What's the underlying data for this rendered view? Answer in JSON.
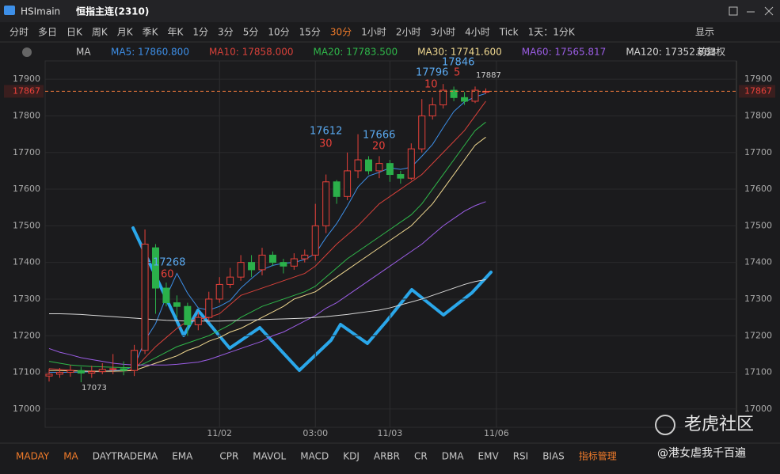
{
  "header": {
    "symbol": "HSImain",
    "name": "恒指主连(2310)"
  },
  "periods": [
    "分时",
    "多日",
    "日K",
    "周K",
    "月K",
    "季K",
    "年K",
    "1分",
    "3分",
    "5分",
    "10分",
    "15分",
    "30分",
    "1小时",
    "2小时",
    "3小时",
    "4小时",
    "Tick",
    "1天：1分K"
  ],
  "active_period": 12,
  "display": "显示",
  "indicator_bar": {
    "name": "MA",
    "adjust": "前复权"
  },
  "chart_data": {
    "type": "candlestick",
    "categories": [
      null,
      null,
      null,
      null,
      null,
      null,
      null,
      null,
      null,
      null,
      null,
      null,
      null,
      null,
      null,
      null,
      "11/02",
      null,
      null,
      null,
      null,
      null,
      null,
      null,
      null,
      "03:00",
      null,
      null,
      null,
      null,
      null,
      null,
      "11/03",
      null,
      null,
      null,
      null,
      null,
      null,
      null,
      null,
      null,
      "11/06"
    ],
    "open": [
      17090,
      17095,
      17100,
      17105,
      17098,
      17102,
      17108,
      17110,
      17105,
      17160,
      17440,
      17330,
      17290,
      17280,
      17230,
      17250,
      17300,
      17340,
      17360,
      17400,
      17380,
      17420,
      17400,
      17390,
      17410,
      17420,
      17500,
      17620,
      17580,
      17650,
      17680,
      17650,
      17670,
      17640,
      17630,
      17710,
      17800,
      17830,
      17870,
      17850,
      17840,
      17865,
      null
    ],
    "high": [
      17110,
      17112,
      17120,
      17115,
      17118,
      17125,
      17150,
      17130,
      17175,
      17490,
      17450,
      17345,
      17310,
      17290,
      17265,
      17320,
      17360,
      17385,
      17420,
      17420,
      17440,
      17430,
      17410,
      17425,
      17435,
      17560,
      17640,
      17625,
      17700,
      17750,
      17690,
      17690,
      17680,
      17650,
      17725,
      17846,
      17850,
      17887,
      17880,
      17865,
      17880,
      17875,
      null
    ],
    "low": [
      17075,
      17085,
      17088,
      17073,
      17085,
      17095,
      17095,
      17092,
      17090,
      17150,
      17260,
      17280,
      17250,
      17200,
      17215,
      17240,
      17290,
      17330,
      17350,
      17360,
      17365,
      17390,
      17370,
      17380,
      17400,
      17405,
      17480,
      17560,
      17570,
      17630,
      17640,
      17630,
      17620,
      17615,
      17625,
      17700,
      17790,
      17820,
      17840,
      17830,
      17835,
      17860,
      null
    ],
    "close": [
      17095,
      17100,
      17105,
      17098,
      17102,
      17108,
      17110,
      17105,
      17160,
      17450,
      17330,
      17290,
      17280,
      17230,
      17250,
      17300,
      17340,
      17360,
      17400,
      17380,
      17420,
      17400,
      17390,
      17410,
      17420,
      17500,
      17620,
      17580,
      17650,
      17680,
      17650,
      17670,
      17640,
      17630,
      17710,
      17800,
      17830,
      17870,
      17850,
      17840,
      17870,
      17867,
      null
    ],
    "up_color": "#e8413a",
    "down_color": "#2bb04a",
    "series": [
      {
        "name": "MA5: 17860.800",
        "color": "#3d8fe8",
        "values": [
          17100,
          17100,
          17100,
          17101,
          17102,
          17103,
          17105,
          17106,
          17117,
          17187,
          17233,
          17306,
          17370,
          17316,
          17276,
          17270,
          17280,
          17296,
          17330,
          17356,
          17380,
          17392,
          17398,
          17400,
          17408,
          17424,
          17468,
          17506,
          17554,
          17606,
          17636,
          17646,
          17658,
          17654,
          17660,
          17690,
          17722,
          17768,
          17812,
          17838,
          17852,
          17861,
          null
        ]
      },
      {
        "name": "MA10: 17858.000",
        "color": "#d8413a",
        "values": [
          17110,
          17108,
          17106,
          17104,
          17103,
          17103,
          17103,
          17104,
          17108,
          17140,
          17170,
          17195,
          17220,
          17240,
          17245,
          17250,
          17260,
          17285,
          17310,
          17320,
          17330,
          17340,
          17350,
          17360,
          17370,
          17390,
          17420,
          17450,
          17475,
          17500,
          17530,
          17560,
          17580,
          17600,
          17620,
          17640,
          17670,
          17700,
          17730,
          17760,
          17800,
          17840,
          null
        ]
      },
      {
        "name": "MA20: 17783.500",
        "color": "#2fb84a",
        "values": [
          17130,
          17125,
          17120,
          17118,
          17116,
          17115,
          17114,
          17113,
          17113,
          17125,
          17140,
          17155,
          17170,
          17180,
          17190,
          17200,
          17215,
          17230,
          17250,
          17265,
          17280,
          17290,
          17300,
          17310,
          17320,
          17335,
          17360,
          17385,
          17410,
          17430,
          17450,
          17470,
          17490,
          17510,
          17530,
          17560,
          17600,
          17640,
          17680,
          17720,
          17760,
          17783,
          null
        ]
      },
      {
        "name": "MA30: 17741.600",
        "color": "#f0d890",
        "values": [
          17105,
          17105,
          17104,
          17104,
          17103,
          17103,
          17103,
          17104,
          17105,
          17115,
          17125,
          17135,
          17145,
          17160,
          17170,
          17185,
          17195,
          17210,
          17220,
          17235,
          17250,
          17265,
          17280,
          17300,
          17310,
          17320,
          17340,
          17360,
          17380,
          17400,
          17420,
          17440,
          17460,
          17480,
          17500,
          17530,
          17560,
          17600,
          17640,
          17680,
          17720,
          17742,
          null
        ]
      },
      {
        "name": "MA60: 17565.817",
        "color": "#9b5de5",
        "values": [
          17165,
          17155,
          17148,
          17140,
          17135,
          17130,
          17125,
          17122,
          17120,
          17120,
          17120,
          17120,
          17122,
          17125,
          17128,
          17135,
          17145,
          17155,
          17165,
          17175,
          17185,
          17200,
          17210,
          17225,
          17240,
          17255,
          17275,
          17290,
          17310,
          17330,
          17350,
          17370,
          17390,
          17410,
          17430,
          17450,
          17475,
          17500,
          17520,
          17540,
          17555,
          17566,
          null
        ]
      },
      {
        "name": "MA120: 17352.883",
        "color": "#d8d8d8",
        "values": [
          17260,
          17260,
          17259,
          17258,
          17256,
          17254,
          17252,
          17250,
          17248,
          17246,
          17244,
          17242,
          17241,
          17240,
          17240,
          17240,
          17240,
          17241,
          17242,
          17243,
          17244,
          17245,
          17246,
          17247,
          17248,
          17250,
          17252,
          17255,
          17258,
          17262,
          17266,
          17270,
          17276,
          17284,
          17292,
          17300,
          17310,
          17320,
          17330,
          17340,
          17348,
          17353,
          null
        ]
      }
    ],
    "ylim": [
      16950,
      17950
    ],
    "yticks": [
      17000,
      17100,
      17200,
      17300,
      17400,
      17500,
      17600,
      17700,
      17800,
      17900
    ],
    "current_price": 17867,
    "annotations": [
      "17268",
      "60",
      "17612",
      "30",
      "17666",
      "20",
      "17796",
      "10",
      "17846",
      "5",
      "17887",
      "17073"
    ]
  },
  "bottom_tabs": [
    "MADAY",
    "MA",
    "DAYTRADEMA",
    "EMA",
    "CPR",
    "MAVOL",
    "MACD",
    "KDJ",
    "ARBR",
    "CR",
    "DMA",
    "EMV",
    "RSI",
    "BIAS",
    "指标管理"
  ],
  "active_tabs": [
    0,
    1,
    14
  ],
  "watermark": "老虎社区",
  "credit": "@港女虐我千百遍"
}
